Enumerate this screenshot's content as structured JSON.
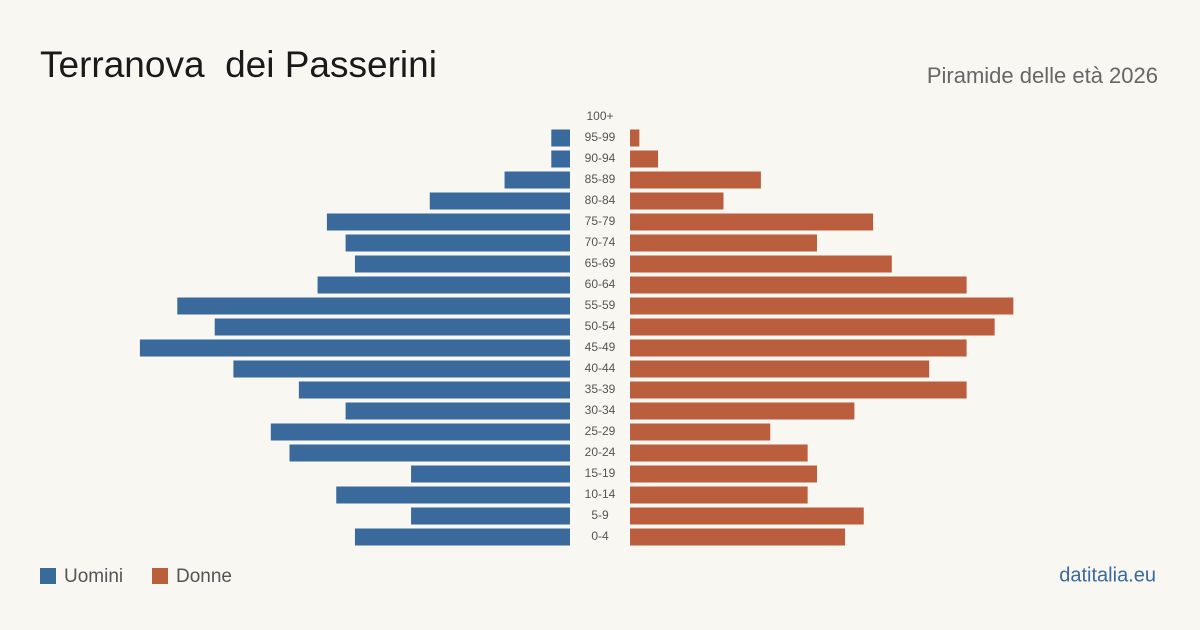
{
  "chart_data": {
    "type": "pyramid",
    "title": "Terranova  dei Passerini",
    "subtitle": "Piramide delle età 2026",
    "source": "datitalia.eu",
    "categories": [
      "100+",
      "95-99",
      "90-94",
      "85-89",
      "80-84",
      "75-79",
      "70-74",
      "65-69",
      "60-64",
      "55-59",
      "50-54",
      "45-49",
      "40-44",
      "35-39",
      "30-34",
      "25-29",
      "20-24",
      "15-19",
      "10-14",
      "5-9",
      "0-4"
    ],
    "series": [
      {
        "name": "Uomini",
        "color": "#3a6a9c",
        "values": [
          0,
          2,
          2,
          7,
          15,
          26,
          24,
          23,
          27,
          42,
          38,
          46,
          36,
          29,
          24,
          32,
          30,
          17,
          25,
          17,
          23
        ]
      },
      {
        "name": "Donne",
        "color": "#bb5e3d",
        "values": [
          0,
          1,
          3,
          14,
          10,
          26,
          20,
          28,
          36,
          41,
          39,
          36,
          32,
          36,
          24,
          15,
          19,
          20,
          19,
          25,
          23
        ]
      }
    ]
  }
}
